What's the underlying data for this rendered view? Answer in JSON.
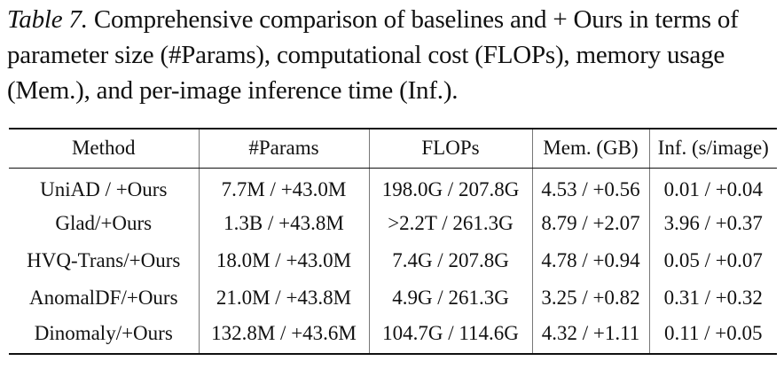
{
  "caption": {
    "label": "Table 7.",
    "text": " Comprehensive comparison of baselines and + Ours in terms of parameter size (#Params), computational cost (FLOPs), memory usage (Mem.), and per-image inference time (Inf.)."
  },
  "table": {
    "headers": [
      "Method",
      "#Params",
      "FLOPs",
      "Mem. (GB)",
      "Inf. (s/image)"
    ],
    "rows": [
      [
        "UniAD / +Ours",
        "7.7M / +43.0M",
        "198.0G / 207.8G",
        "4.53 / +0.56",
        "0.01 / +0.04"
      ],
      [
        "Glad/+Ours",
        "1.3B / +43.8M",
        ">2.2T / 261.3G",
        "8.79 / +2.07",
        "3.96 / +0.37"
      ],
      [
        "HVQ-Trans/+Ours",
        "18.0M / +43.0M",
        "7.4G / 207.8G",
        "4.78 / +0.94",
        "0.05 / +0.07"
      ],
      [
        "AnomalDF/+Ours",
        "21.0M / +43.8M",
        "4.9G / 261.3G",
        "3.25 / +0.82",
        "0.31 / +0.32"
      ],
      [
        "Dinomaly/+Ours",
        "132.8M / +43.6M",
        "104.7G / 114.6G",
        "4.32 / +1.11",
        "0.11 / +0.05"
      ]
    ]
  }
}
